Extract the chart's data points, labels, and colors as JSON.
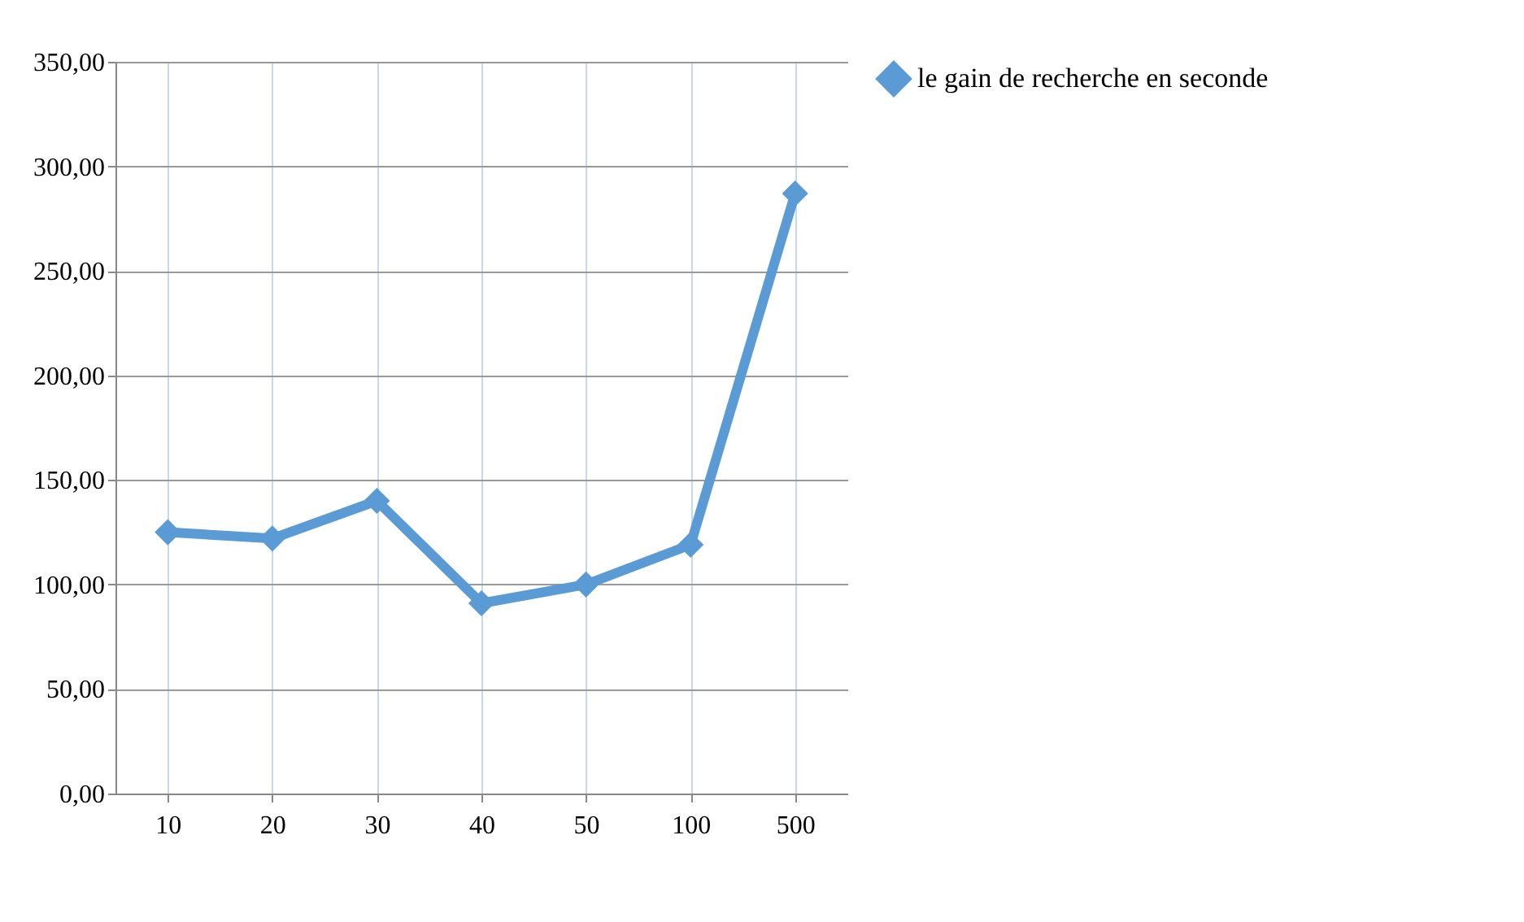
{
  "chart_data": {
    "type": "line",
    "categories": [
      "10",
      "20",
      "30",
      "40",
      "50",
      "100",
      "500"
    ],
    "series": [
      {
        "name": "le gain de recherche en seconde",
        "color": "#5b9bd5",
        "values": [
          125,
          122,
          140,
          91,
          100,
          119,
          287
        ]
      }
    ],
    "ylim": [
      0,
      350
    ],
    "yticks": [
      {
        "value": 0,
        "label": "0,00"
      },
      {
        "value": 50,
        "label": "50,00"
      },
      {
        "value": 100,
        "label": "100,00"
      },
      {
        "value": 150,
        "label": "150,00"
      },
      {
        "value": 200,
        "label": "200,00"
      },
      {
        "value": 250,
        "label": "250,00"
      },
      {
        "value": 300,
        "label": "300,00"
      },
      {
        "value": 350,
        "label": "350,00"
      }
    ],
    "grid": true,
    "legend": "right",
    "marker": "diamond",
    "line_style": "solid"
  }
}
